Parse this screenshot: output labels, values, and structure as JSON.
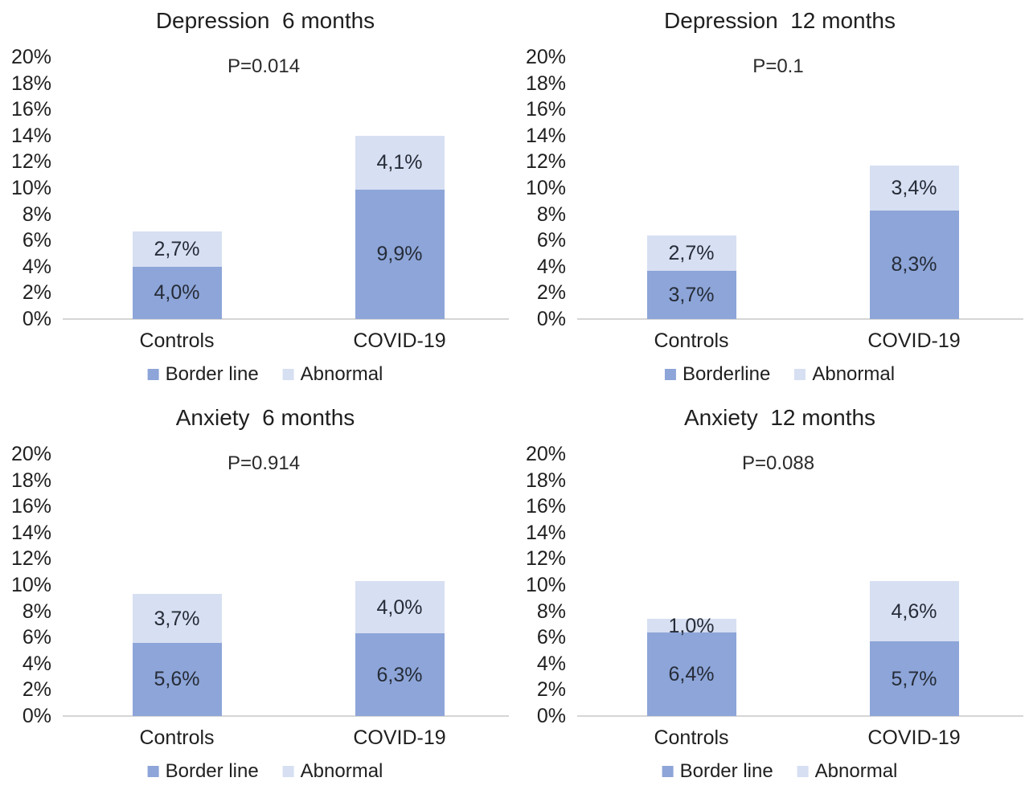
{
  "figure": {
    "background": "#ffffff",
    "description": "Four stacked bar charts comparing Controls vs COVID-19 for depression and anxiety at 6 and 12 months"
  },
  "colors": {
    "borderline": "#8da5d8",
    "abnormal": "#d7dff2",
    "axis_line": "#d6d6d6",
    "text": "#1f1f1f",
    "bar_label_text": "#262c38"
  },
  "y_axis": {
    "tick_labels": [
      "20%",
      "18%",
      "16%",
      "14%",
      "12%",
      "10%",
      "8%",
      "6%",
      "4%",
      "2%",
      "0%"
    ],
    "max": 20,
    "step": 2,
    "grid": false
  },
  "chart_data": [
    {
      "type": "bar",
      "stacked": true,
      "title": "Depression  6 months",
      "p_label": "P=0.014",
      "categories": [
        "Controls",
        "COVID-19"
      ],
      "legend": [
        "Border line",
        "Abnormal"
      ],
      "legend_position": "bottom",
      "ylim": [
        0,
        20
      ],
      "series": [
        {
          "name": "Border line",
          "values": [
            4.0,
            9.9
          ],
          "labels": [
            "4,0%",
            "9,9%"
          ]
        },
        {
          "name": "Abnormal",
          "values": [
            2.7,
            4.1
          ],
          "labels": [
            "2,7%",
            "4,1%"
          ]
        }
      ]
    },
    {
      "type": "bar",
      "stacked": true,
      "title": "Depression  12 months",
      "p_label": "P=0.1",
      "categories": [
        "Controls",
        "COVID-19"
      ],
      "legend": [
        "Borderline",
        "Abnormal"
      ],
      "legend_position": "bottom",
      "ylim": [
        0,
        20
      ],
      "series": [
        {
          "name": "Borderline",
          "values": [
            3.7,
            8.3
          ],
          "labels": [
            "3,7%",
            "8,3%"
          ]
        },
        {
          "name": "Abnormal",
          "values": [
            2.7,
            3.4
          ],
          "labels": [
            "2,7%",
            "3,4%"
          ]
        }
      ]
    },
    {
      "type": "bar",
      "stacked": true,
      "title": "Anxiety  6 months",
      "p_label": "P=0.914",
      "categories": [
        "Controls",
        "COVID-19"
      ],
      "legend": [
        "Border line",
        "Abnormal"
      ],
      "legend_position": "bottom",
      "ylim": [
        0,
        20
      ],
      "series": [
        {
          "name": "Border line",
          "values": [
            5.6,
            6.3
          ],
          "labels": [
            "5,6%",
            "6,3%"
          ]
        },
        {
          "name": "Abnormal",
          "values": [
            3.7,
            4.0
          ],
          "labels": [
            "3,7%",
            "4,0%"
          ]
        }
      ]
    },
    {
      "type": "bar",
      "stacked": true,
      "title": "Anxiety  12 months",
      "p_label": "P=0.088",
      "categories": [
        "Controls",
        "COVID-19"
      ],
      "legend": [
        "Border line",
        "Abnormal"
      ],
      "legend_position": "bottom",
      "ylim": [
        0,
        20
      ],
      "series": [
        {
          "name": "Border line",
          "values": [
            6.4,
            5.7
          ],
          "labels": [
            "6,4%",
            "5,7%"
          ]
        },
        {
          "name": "Abnormal",
          "values": [
            1.0,
            4.6
          ],
          "labels": [
            "1,0%",
            "4,6%"
          ]
        }
      ]
    }
  ]
}
